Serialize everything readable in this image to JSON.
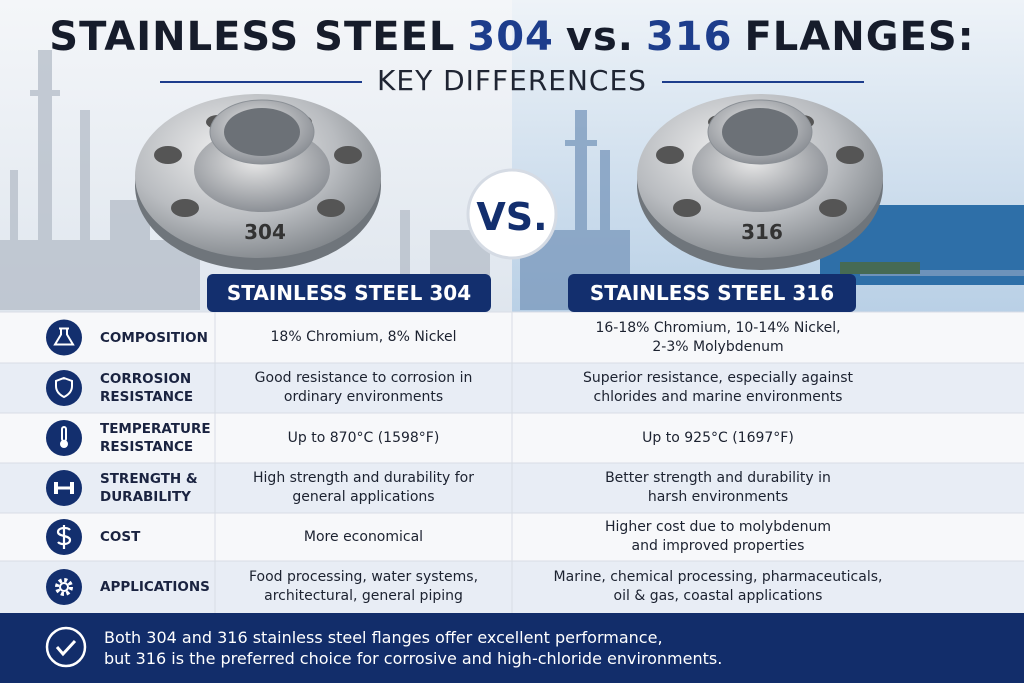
{
  "header": {
    "title_parts": [
      "STAINLESS STEEL",
      "304",
      "vs.",
      "316",
      "FLANGES:"
    ],
    "subtitle": "KEY DIFFERENCES"
  },
  "flanges": {
    "left_stamp": "304",
    "right_stamp": "316",
    "vs_badge": "VS."
  },
  "columns": [
    "STAINLESS STEEL 304",
    "STAINLESS STEEL 316"
  ],
  "table": {
    "rows": [
      {
        "label": [
          "COMPOSITION"
        ],
        "c304": [
          "18% Chromium, 8% Nickel"
        ],
        "c316": [
          "16-18% Chromium, 10-14% Nickel,",
          "2-3% Molybdenum"
        ]
      },
      {
        "label": [
          "CORROSION",
          "RESISTANCE"
        ],
        "c304": [
          "Good resistance to corrosion in",
          "ordinary environments"
        ],
        "c316": [
          "Superior resistance, especially against",
          "chlorides and marine environments"
        ]
      },
      {
        "label": [
          "TEMPERATURE",
          "RESISTANCE"
        ],
        "c304": [
          "Up to 870°C (1598°F)"
        ],
        "c316": [
          "Up to 925°C (1697°F)"
        ]
      },
      {
        "label": [
          "STRENGTH &",
          "DURABILITY"
        ],
        "c304": [
          "High strength and durability for",
          "general applications"
        ],
        "c316": [
          "Better strength and durability in",
          "harsh environments"
        ]
      },
      {
        "label": [
          "COST"
        ],
        "c304": [
          "More economical"
        ],
        "c316": [
          "Higher cost due to molybdenum",
          "and improved properties"
        ]
      },
      {
        "label": [
          "APPLICATIONS"
        ],
        "c304": [
          "Food processing, water systems,",
          "architectural, general piping"
        ],
        "c316": [
          "Marine, chemical processing, pharmaceuticals,",
          "oil & gas, coastal applications"
        ]
      }
    ]
  },
  "footer": {
    "lines": [
      "Both 304 and 316 stainless steel flanges offer excellent performance,",
      "but 316 is the preferred choice for corrosive and high-chloride environments."
    ]
  }
}
